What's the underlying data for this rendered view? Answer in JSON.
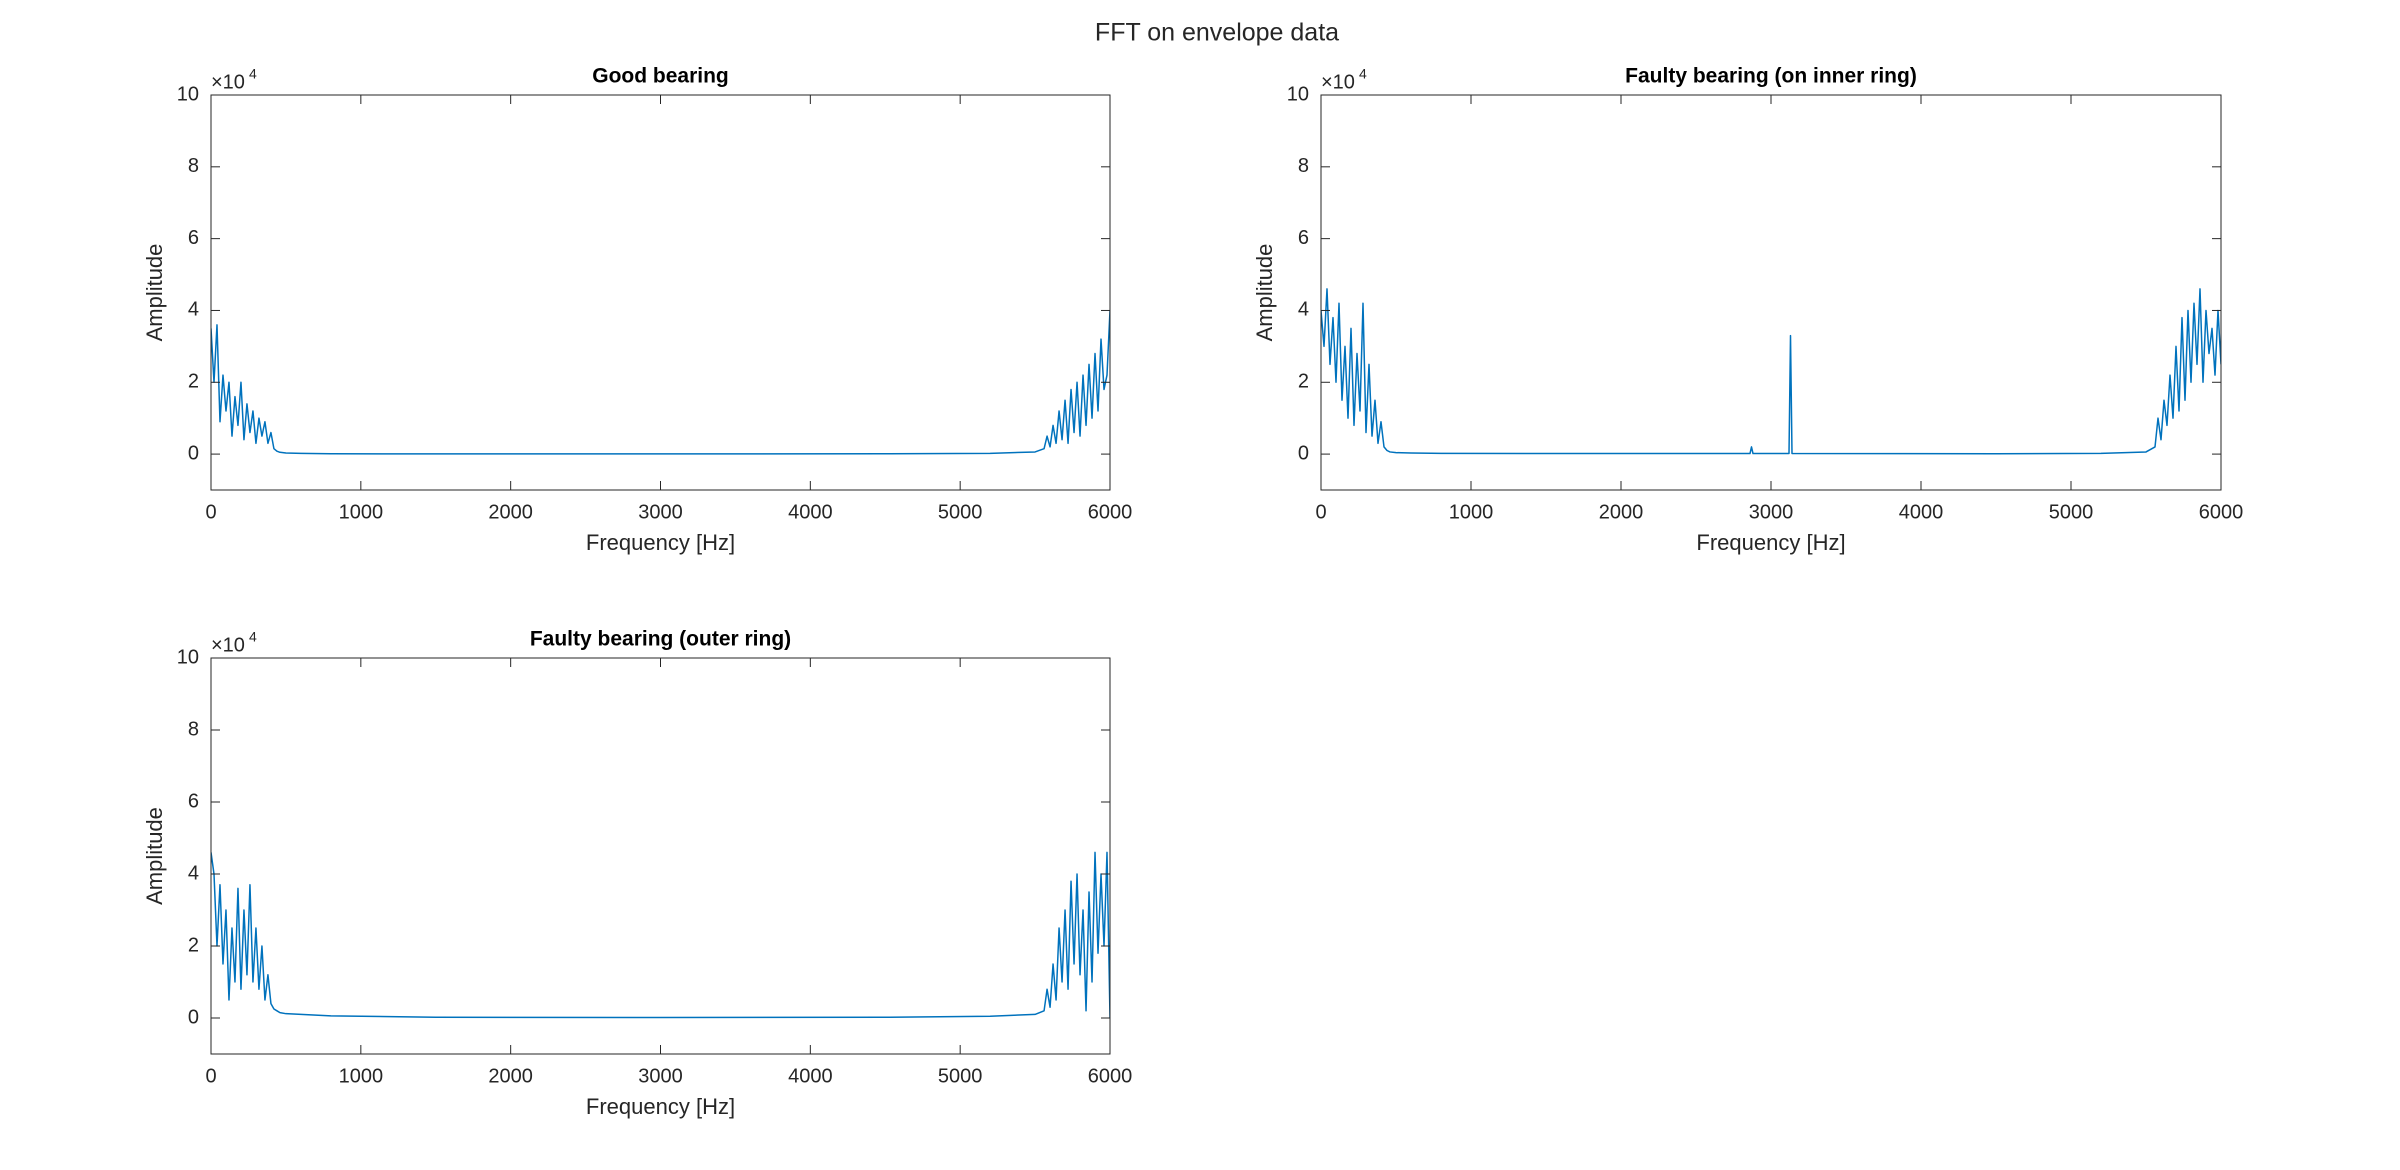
{
  "suptitle": "FFT on envelope data",
  "chart_data": [
    {
      "type": "line",
      "title": "Good bearing",
      "xlabel": "Frequency [Hz]",
      "ylabel": "Amplitude",
      "y_multiplier": {
        "base": "×10",
        "exponent": "4"
      },
      "color": "#0072bd",
      "xlim": [
        0,
        6000
      ],
      "xticks": [
        0,
        1000,
        2000,
        3000,
        4000,
        5000,
        6000
      ],
      "ylim": [
        -10000,
        100000
      ],
      "yticks": [
        {
          "value": 0,
          "label": "0"
        },
        {
          "value": 20000,
          "label": "2"
        },
        {
          "value": 40000,
          "label": "4"
        },
        {
          "value": 60000,
          "label": "6"
        },
        {
          "value": 80000,
          "label": "8"
        },
        {
          "value": 100000,
          "label": "10"
        }
      ],
      "x": [
        0,
        20,
        40,
        60,
        80,
        100,
        120,
        140,
        160,
        180,
        200,
        220,
        240,
        260,
        280,
        300,
        320,
        340,
        360,
        380,
        400,
        420,
        440,
        460,
        500,
        600,
        800,
        1500,
        3000,
        4500,
        5200,
        5500,
        5560,
        5580,
        5600,
        5620,
        5640,
        5660,
        5680,
        5700,
        5720,
        5740,
        5760,
        5780,
        5800,
        5820,
        5840,
        5860,
        5880,
        5900,
        5920,
        5940,
        5960,
        5980,
        6000
      ],
      "values": [
        35000,
        20000,
        36000,
        9000,
        22000,
        12000,
        20000,
        5000,
        16000,
        8000,
        20000,
        4000,
        14000,
        6000,
        12000,
        3000,
        10000,
        5000,
        9000,
        3000,
        6000,
        1500,
        800,
        500,
        300,
        200,
        100,
        50,
        50,
        100,
        200,
        600,
        1500,
        5000,
        2000,
        8000,
        3000,
        12000,
        4000,
        15000,
        3000,
        18000,
        6000,
        20000,
        5000,
        22000,
        8000,
        25000,
        10000,
        28000,
        12000,
        32000,
        18000,
        22000,
        40000
      ]
    },
    {
      "type": "line",
      "title": "Faulty bearing (on inner ring)",
      "xlabel": "Frequency [Hz]",
      "ylabel": "Amplitude",
      "y_multiplier": {
        "base": "×10",
        "exponent": "4"
      },
      "color": "#0072bd",
      "xlim": [
        0,
        6000
      ],
      "xticks": [
        0,
        1000,
        2000,
        3000,
        4000,
        5000,
        6000
      ],
      "ylim": [
        -10000,
        100000
      ],
      "yticks": [
        {
          "value": 0,
          "label": "0"
        },
        {
          "value": 20000,
          "label": "2"
        },
        {
          "value": 40000,
          "label": "4"
        },
        {
          "value": 60000,
          "label": "6"
        },
        {
          "value": 80000,
          "label": "8"
        },
        {
          "value": 100000,
          "label": "10"
        }
      ],
      "x": [
        0,
        20,
        40,
        60,
        80,
        100,
        120,
        140,
        160,
        180,
        200,
        220,
        240,
        260,
        280,
        300,
        320,
        340,
        360,
        380,
        400,
        420,
        440,
        460,
        500,
        600,
        800,
        1500,
        2860,
        2870,
        2880,
        3120,
        3130,
        3140,
        4500,
        5200,
        5500,
        5560,
        5580,
        5600,
        5620,
        5640,
        5660,
        5680,
        5700,
        5720,
        5740,
        5760,
        5780,
        5800,
        5820,
        5840,
        5860,
        5880,
        5900,
        5920,
        5940,
        5960,
        5980,
        6000
      ],
      "values": [
        40000,
        30000,
        46000,
        25000,
        38000,
        20000,
        42000,
        15000,
        30000,
        10000,
        35000,
        8000,
        28000,
        12000,
        42000,
        6000,
        25000,
        5000,
        15000,
        3000,
        9000,
        2000,
        1000,
        600,
        400,
        300,
        200,
        150,
        150,
        2000,
        150,
        150,
        33000,
        150,
        100,
        200,
        600,
        2000,
        10000,
        4000,
        15000,
        8000,
        22000,
        10000,
        30000,
        12000,
        38000,
        15000,
        40000,
        20000,
        42000,
        25000,
        46000,
        20000,
        40000,
        28000,
        35000,
        22000,
        40000,
        25000
      ]
    },
    {
      "type": "line",
      "title": "Faulty bearing (outer ring)",
      "xlabel": "Frequency [Hz]",
      "ylabel": "Amplitude",
      "y_multiplier": {
        "base": "×10",
        "exponent": "4"
      },
      "color": "#0072bd",
      "xlim": [
        0,
        6000
      ],
      "xticks": [
        0,
        1000,
        2000,
        3000,
        4000,
        5000,
        6000
      ],
      "ylim": [
        -10000,
        100000
      ],
      "yticks": [
        {
          "value": 0,
          "label": "0"
        },
        {
          "value": 20000,
          "label": "2"
        },
        {
          "value": 40000,
          "label": "4"
        },
        {
          "value": 60000,
          "label": "6"
        },
        {
          "value": 80000,
          "label": "8"
        },
        {
          "value": 100000,
          "label": "10"
        }
      ],
      "x": [
        0,
        20,
        40,
        60,
        80,
        100,
        120,
        140,
        160,
        180,
        200,
        220,
        240,
        260,
        280,
        300,
        320,
        340,
        360,
        380,
        400,
        420,
        440,
        460,
        500,
        600,
        800,
        1500,
        3000,
        4500,
        5200,
        5500,
        5560,
        5580,
        5600,
        5620,
        5640,
        5660,
        5680,
        5700,
        5720,
        5740,
        5760,
        5780,
        5800,
        5820,
        5840,
        5860,
        5880,
        5900,
        5920,
        5940,
        5960,
        5980,
        6000
      ],
      "values": [
        46000,
        40000,
        20000,
        37000,
        15000,
        30000,
        5000,
        25000,
        10000,
        36000,
        8000,
        30000,
        12000,
        37000,
        10000,
        25000,
        8000,
        20000,
        5000,
        12000,
        4000,
        2500,
        2000,
        1500,
        1200,
        1000,
        600,
        200,
        150,
        200,
        500,
        1000,
        2000,
        8000,
        3000,
        15000,
        5000,
        25000,
        10000,
        30000,
        8000,
        38000,
        15000,
        40000,
        12000,
        30000,
        2000,
        35000,
        10000,
        46000,
        18000,
        40000,
        20000,
        46000,
        0
      ]
    }
  ]
}
